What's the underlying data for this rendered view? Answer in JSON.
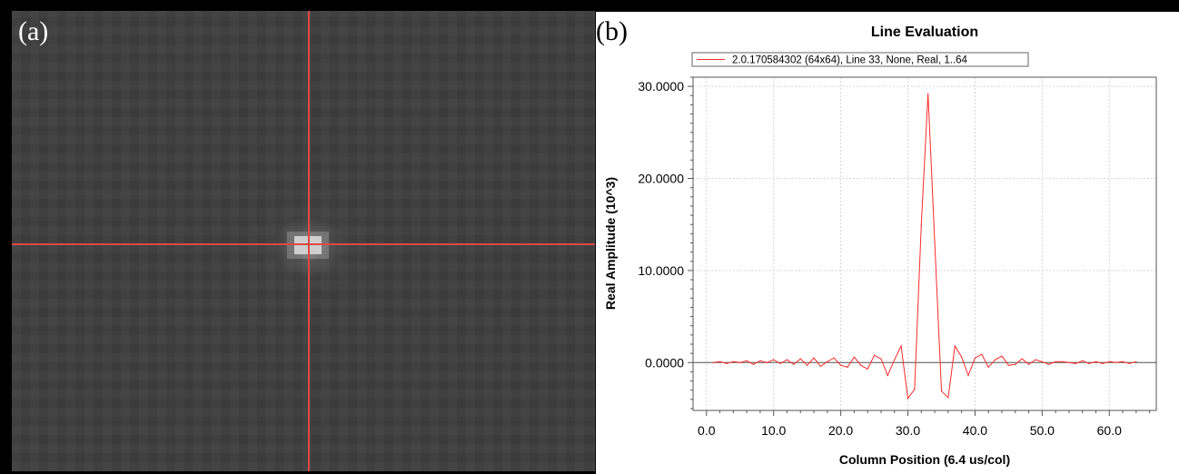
{
  "panels": {
    "a": {
      "label": "(a)"
    },
    "b": {
      "label": "(b)"
    }
  },
  "colors": {
    "crosshair": "#e04848",
    "series": "#ff2a2a",
    "image_bg": "#3d3d3d"
  },
  "chart_data": {
    "type": "line",
    "title": "Line Evaluation",
    "xlabel": "Column Position (6.4 us/col)",
    "ylabel": "Real Amplitude (10^3)",
    "xlim": [
      -2,
      67
    ],
    "ylim": [
      -5.2,
      31
    ],
    "x_ticks": [
      0,
      10,
      20,
      30,
      40,
      50,
      60
    ],
    "x_tick_labels": [
      "0.0",
      "10.0",
      "20.0",
      "30.0",
      "40.0",
      "50.0",
      "60.0"
    ],
    "y_ticks": [
      0,
      10,
      20,
      30
    ],
    "y_tick_labels": [
      "0.0000",
      "10.0000",
      "20.0000",
      "30.0000"
    ],
    "grid": true,
    "legend_position": "top",
    "series": [
      {
        "name": "2.0.170584302 (64x64), Line 33, None, Real, 1..64",
        "color": "#ff2a2a",
        "x": [
          1,
          2,
          3,
          4,
          5,
          6,
          7,
          8,
          9,
          10,
          11,
          12,
          13,
          14,
          15,
          16,
          17,
          18,
          19,
          20,
          21,
          22,
          23,
          24,
          25,
          26,
          27,
          28,
          29,
          30,
          31,
          32,
          33,
          34,
          35,
          36,
          37,
          38,
          39,
          40,
          41,
          42,
          43,
          44,
          45,
          46,
          47,
          48,
          49,
          50,
          51,
          52,
          53,
          54,
          55,
          56,
          57,
          58,
          59,
          60,
          61,
          62,
          63,
          64
        ],
        "y": [
          0.0,
          0.1,
          -0.1,
          0.1,
          0.0,
          0.2,
          -0.2,
          0.2,
          0.0,
          0.3,
          -0.1,
          0.3,
          -0.2,
          0.4,
          -0.3,
          0.5,
          -0.4,
          0.1,
          0.5,
          -0.3,
          -0.5,
          0.6,
          -0.3,
          -0.7,
          0.8,
          0.4,
          -1.4,
          0.3,
          1.8,
          -3.9,
          -2.9,
          15.0,
          29.2,
          13.0,
          -3.1,
          -3.8,
          1.8,
          0.6,
          -1.4,
          0.5,
          0.9,
          -0.5,
          0.3,
          0.7,
          -0.3,
          -0.2,
          0.4,
          -0.2,
          0.3,
          0.1,
          -0.2,
          0.1,
          0.1,
          0.0,
          -0.1,
          0.2,
          -0.1,
          0.1,
          -0.1,
          0.1,
          0.0,
          0.1,
          -0.1,
          0.1
        ]
      }
    ]
  }
}
